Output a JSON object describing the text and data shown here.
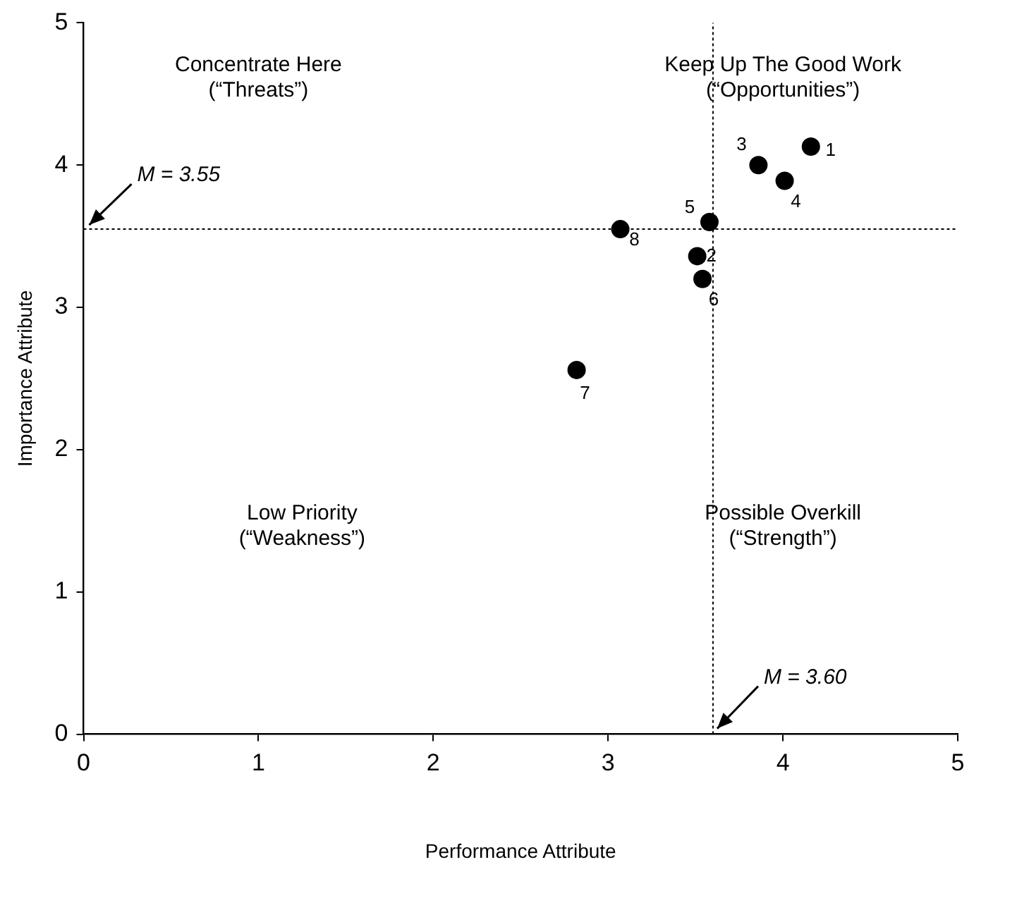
{
  "chart_data": {
    "type": "scatter",
    "xlabel": "Performance Attribute",
    "ylabel": "Importance Attribute",
    "xlim": [
      0,
      5
    ],
    "xticks": [
      0,
      1,
      2,
      3,
      4,
      5
    ],
    "ylim": [
      0,
      5
    ],
    "yticks": [
      0,
      1,
      2,
      3,
      4,
      5
    ],
    "series": [
      {
        "color": "#000000",
        "x": [
          4.16,
          3.51,
          3.86,
          4.01,
          3.58,
          3.54,
          2.82,
          3.07
        ],
        "values": [
          4.13,
          3.36,
          4.0,
          3.89,
          3.6,
          3.2,
          2.56,
          3.55
        ]
      }
    ],
    "marker": "circle",
    "legend": false,
    "ref_lines": [
      {
        "axis": "y",
        "value": 3.55,
        "label": "M = 3.55",
        "color": "#000000",
        "line_style": "dotted"
      },
      {
        "axis": "x",
        "value": 3.6,
        "label": "M = 3.60",
        "color": "#000000",
        "line_style": "dotted"
      }
    ],
    "annotations": [
      "Concentrate Here\n(“Threats”)",
      "Keep Up The Good Work\n(“Opportunities”)",
      "Low Priority\n(“Weakness”)",
      "Possible Overkill\n(“Strength”)",
      {
        "text": "1",
        "x": 4.16,
        "y": 4.13
      },
      {
        "text": "2",
        "x": 3.51,
        "y": 3.36
      },
      {
        "text": "3",
        "x": 3.86,
        "y": 4.0
      },
      {
        "text": "4",
        "x": 4.01,
        "y": 3.89
      },
      {
        "text": "5",
        "x": 3.58,
        "y": 3.6
      },
      {
        "text": "6",
        "x": 3.54,
        "y": 3.2
      },
      {
        "text": "7",
        "x": 2.82,
        "y": 2.56
      },
      {
        "text": "8",
        "x": 3.07,
        "y": 3.55
      }
    ]
  }
}
